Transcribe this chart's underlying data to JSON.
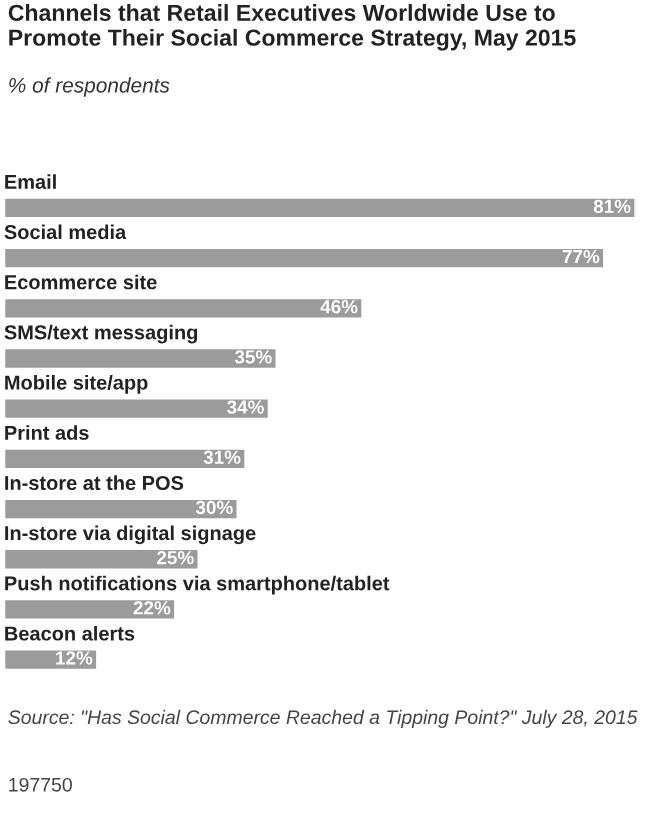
{
  "chart_data": {
    "type": "bar",
    "orientation": "horizontal",
    "title": "Channels that Retail Executives Worldwide Use to Promote Their Social Commerce Strategy, May 2015",
    "subtitle": "% of respondents",
    "categories": [
      "Email",
      "Social media",
      "Ecommerce site",
      "SMS/text messaging",
      "Mobile site/app",
      "Print ads",
      "In-store at the POS",
      "In-store via digital signage",
      "Push notifications via smartphone/tablet",
      "Beacon alerts"
    ],
    "values": [
      81,
      77,
      46,
      35,
      34,
      31,
      30,
      25,
      22,
      12
    ],
    "value_labels": [
      "81%",
      "77%",
      "46%",
      "35%",
      "34%",
      "31%",
      "30%",
      "25%",
      "22%",
      "12%"
    ],
    "color": "#9b9b9b",
    "annotations": [
      "Source: \"Has Social Commerce Reached a Tipping Point?\" July 28, 2015",
      "197750"
    ]
  }
}
